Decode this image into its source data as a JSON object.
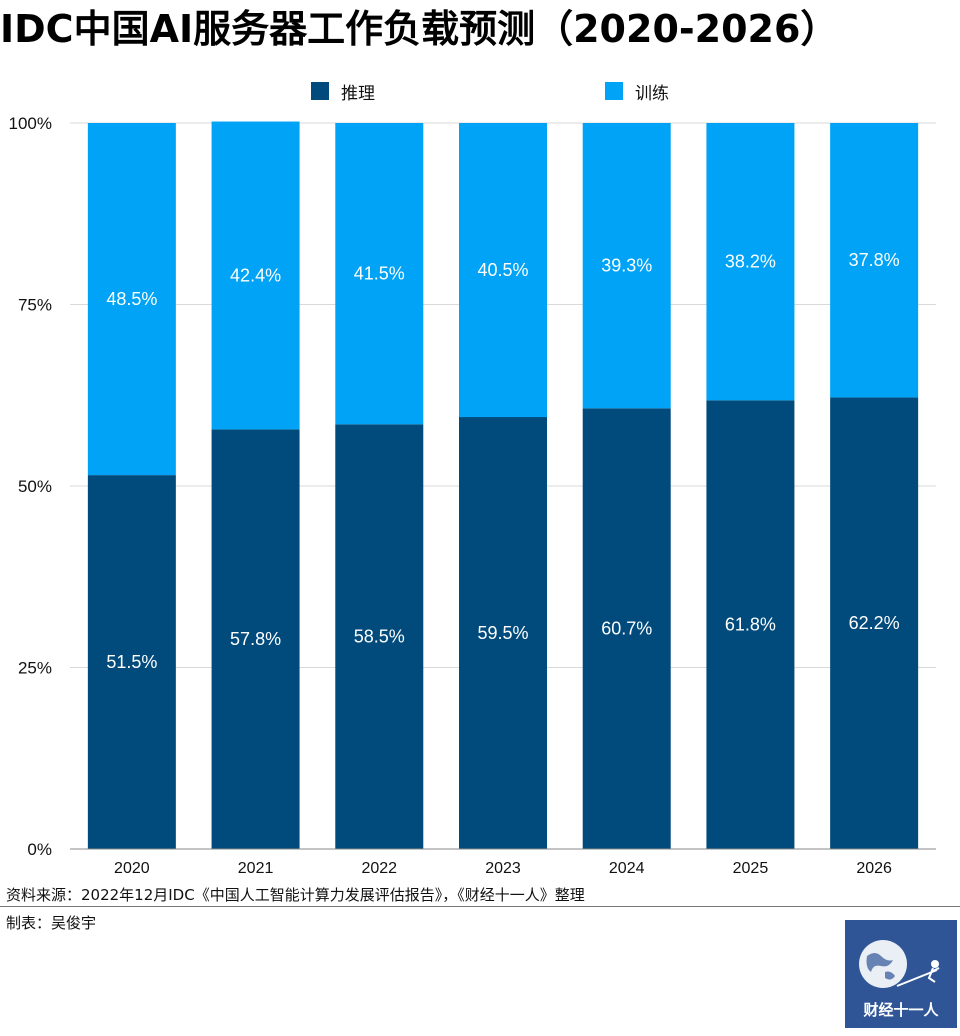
{
  "title": "IDC中国AI服务器工作负载预测（2020-2026）",
  "colors": {
    "inference": "#004a7c",
    "training": "#00a3f5",
    "grid": "#d9d9d9",
    "logo_bg": "#2f5597"
  },
  "chart_data": {
    "type": "bar",
    "stacked": true,
    "normalized_percent": true,
    "categories": [
      "2020",
      "2021",
      "2022",
      "2023",
      "2024",
      "2025",
      "2026"
    ],
    "series": [
      {
        "name": "推理",
        "values": [
          51.5,
          57.8,
          58.5,
          59.5,
          60.7,
          61.8,
          62.2
        ],
        "labels": [
          "51.5%",
          "57.8%",
          "58.5%",
          "59.5%",
          "60.7%",
          "61.8%",
          "62.2%"
        ]
      },
      {
        "name": "训练",
        "values": [
          48.5,
          42.4,
          41.5,
          40.5,
          39.3,
          38.2,
          37.8
        ],
        "labels": [
          "48.5%",
          "42.4%",
          "41.5%",
          "40.5%",
          "39.3%",
          "38.2%",
          "37.8%"
        ]
      }
    ],
    "ylim": [
      0,
      100
    ],
    "yticks": [
      "0%",
      "25%",
      "50%",
      "75%",
      "100%"
    ],
    "grid": true,
    "legend": "top-center"
  },
  "footer": {
    "source": "资料来源：2022年12月IDC《中国人工智能计算力发展评估报告》，《财经十一人》整理",
    "maker": "制表：吴俊宇",
    "logo_text": "财经十一人"
  }
}
